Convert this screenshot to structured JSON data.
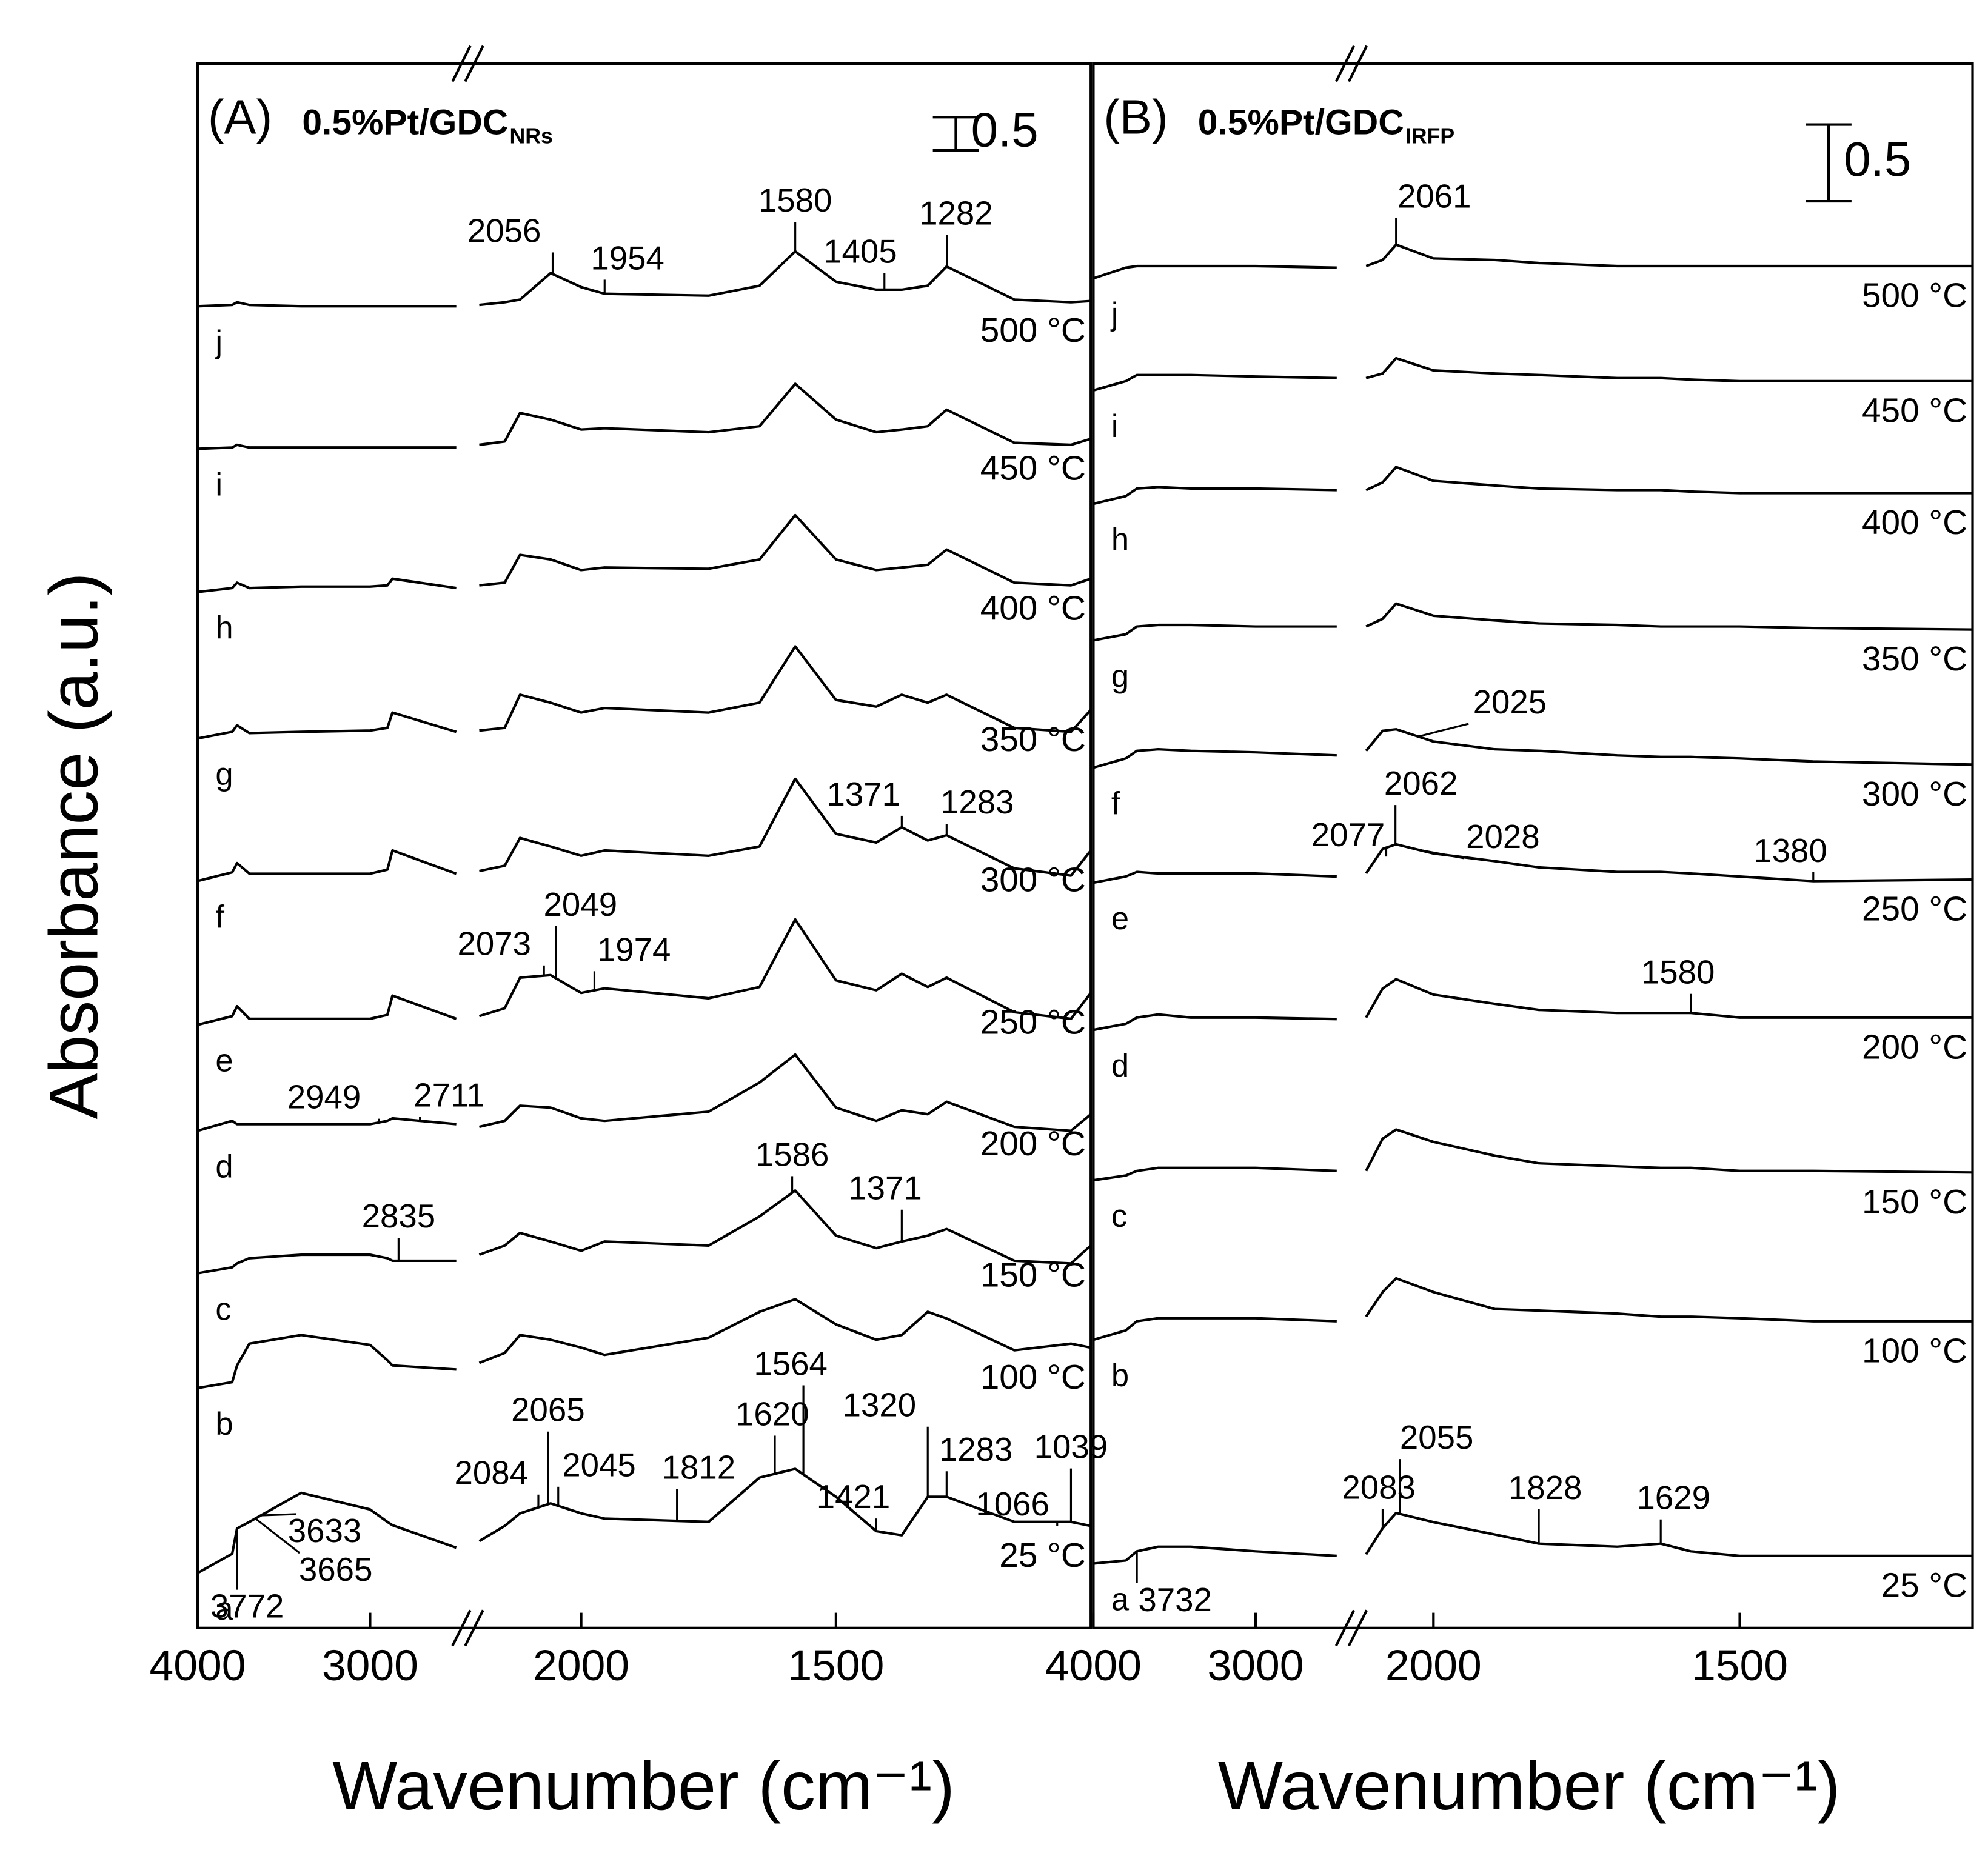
{
  "chart_data": [
    {
      "type": "line",
      "title": "(A)",
      "sample": "0.5%Pt/GDC",
      "sample_subscript": "NRs",
      "ylabel": "Absorbance (a.u.)",
      "xlabel": "Wavenumber (cm⁻¹)",
      "xlim": [
        4000,
        1000
      ],
      "xbreak": [
        2500,
        2200
      ],
      "xticks": [
        4000,
        3000,
        2000,
        1500
      ],
      "ylim": [
        0,
        23.6
      ],
      "scale_bar": 0.5,
      "color": "#000000",
      "x": [
        4000,
        3800,
        3772,
        3700,
        3400,
        3000,
        2900,
        2870,
        2500,
        2200,
        2150,
        2120,
        2060,
        2000,
        1954,
        1750,
        1650,
        1580,
        1500,
        1421,
        1371,
        1320,
        1283,
        1150,
        1039,
        1000
      ],
      "series": [
        {
          "name": "25 °C",
          "label": "a",
          "values": [
            0.83,
            1.12,
            1.5,
            1.6,
            2.04,
            1.79,
            1.6,
            1.55,
            1.21,
            1.31,
            1.54,
            1.73,
            1.88,
            1.73,
            1.65,
            1.6,
            2.27,
            2.4,
            1.98,
            1.46,
            1.4,
            1.98,
            1.98,
            1.6,
            1.6,
            1.54
          ],
          "peaks": [
            3772,
            3665,
            3633,
            2084,
            2065,
            2045,
            1812,
            1620,
            1564,
            1421,
            1320,
            1283,
            1066,
            1039
          ]
        },
        {
          "name": "100 °C",
          "label": "b",
          "values": [
            3.62,
            3.71,
            3.96,
            4.29,
            4.42,
            4.27,
            4.04,
            3.96,
            3.9,
            4.0,
            4.15,
            4.42,
            4.35,
            4.23,
            4.12,
            4.38,
            4.77,
            4.96,
            4.58,
            4.35,
            4.42,
            4.77,
            4.67,
            4.19,
            4.29,
            4.23
          ],
          "peaks": []
        },
        {
          "name": "150 °C",
          "label": "c",
          "values": [
            5.35,
            5.44,
            5.5,
            5.58,
            5.63,
            5.63,
            5.58,
            5.54,
            5.54,
            5.63,
            5.77,
            5.96,
            5.83,
            5.69,
            5.83,
            5.77,
            6.21,
            6.6,
            5.92,
            5.73,
            5.83,
            5.92,
            6.02,
            5.54,
            5.5,
            5.77
          ],
          "peaks": [
            2835,
            1586,
            1371
          ]
        },
        {
          "name": "200 °C",
          "label": "d",
          "values": [
            7.5,
            7.65,
            7.6,
            7.6,
            7.6,
            7.6,
            7.65,
            7.69,
            7.6,
            7.56,
            7.65,
            7.88,
            7.85,
            7.69,
            7.65,
            7.79,
            8.23,
            8.65,
            7.85,
            7.65,
            7.81,
            7.75,
            7.94,
            7.56,
            7.5,
            7.75
          ],
          "peaks": [
            2949,
            2711
          ]
        },
        {
          "name": "250 °C",
          "label": "e",
          "values": [
            9.1,
            9.23,
            9.38,
            9.19,
            9.19,
            9.19,
            9.25,
            9.54,
            9.19,
            9.23,
            9.35,
            9.81,
            9.85,
            9.58,
            9.65,
            9.5,
            9.67,
            10.69,
            9.77,
            9.62,
            9.87,
            9.67,
            9.81,
            9.29,
            9.19,
            9.58
          ],
          "peaks": [
            2073,
            2049,
            1974
          ]
        },
        {
          "name": "300 °C",
          "label": "f",
          "values": [
            11.27,
            11.4,
            11.54,
            11.38,
            11.38,
            11.38,
            11.44,
            11.73,
            11.38,
            11.42,
            11.5,
            11.92,
            11.79,
            11.65,
            11.73,
            11.65,
            11.79,
            12.81,
            11.98,
            11.85,
            12.08,
            11.88,
            11.96,
            11.46,
            11.35,
            11.73
          ],
          "peaks": [
            1371,
            1283
          ]
        },
        {
          "name": "350 °C",
          "label": "g",
          "values": [
            13.42,
            13.52,
            13.62,
            13.5,
            13.52,
            13.54,
            13.58,
            13.81,
            13.52,
            13.54,
            13.58,
            14.08,
            13.96,
            13.81,
            13.88,
            13.81,
            13.96,
            14.81,
            14.0,
            13.9,
            14.08,
            13.96,
            14.08,
            13.58,
            13.52,
            13.85
          ],
          "peaks": []
        },
        {
          "name": "400 °C",
          "label": "h",
          "values": [
            15.63,
            15.69,
            15.77,
            15.69,
            15.71,
            15.71,
            15.73,
            15.83,
            15.69,
            15.73,
            15.77,
            16.19,
            16.12,
            15.96,
            16.0,
            15.98,
            16.12,
            16.79,
            16.12,
            15.96,
            16.0,
            16.04,
            16.27,
            15.77,
            15.73,
            15.83
          ],
          "peaks": []
        },
        {
          "name": "450 °C",
          "label": "i",
          "values": [
            17.79,
            17.81,
            17.85,
            17.81,
            17.81,
            17.81,
            17.81,
            17.81,
            17.81,
            17.85,
            17.9,
            18.33,
            18.23,
            18.08,
            18.1,
            18.04,
            18.13,
            18.77,
            18.23,
            18.04,
            18.08,
            18.13,
            18.38,
            17.88,
            17.85,
            17.94
          ],
          "peaks": []
        },
        {
          "name": "500 °C",
          "label": "j",
          "values": [
            19.94,
            19.96,
            20.0,
            19.96,
            19.94,
            19.94,
            19.94,
            19.94,
            19.94,
            19.96,
            20.0,
            20.04,
            20.44,
            20.23,
            20.13,
            20.1,
            20.25,
            20.77,
            20.31,
            20.19,
            20.19,
            20.25,
            20.54,
            20.04,
            20.0,
            20.02
          ],
          "peaks": [
            2056,
            1954,
            1580,
            1405,
            1282
          ]
        }
      ]
    },
    {
      "type": "line",
      "title": "(B)",
      "sample": "0.5%Pt/GDC",
      "sample_subscript": "IRFP",
      "xlabel": "Wavenumber (cm⁻¹)",
      "xlim": [
        4000,
        1120
      ],
      "xbreak": [
        2500,
        2110
      ],
      "xticks": [
        4000,
        3000,
        2000,
        1500
      ],
      "ylim": [
        0,
        10.2
      ],
      "scale_bar": 0.5,
      "color": "#000000",
      "x": [
        4000,
        3800,
        3732,
        3600,
        3400,
        3000,
        2500,
        2110,
        2083,
        2061,
        2000,
        1900,
        1828,
        1700,
        1629,
        1580,
        1500,
        1380,
        1120
      ],
      "series": [
        {
          "name": "25 °C",
          "label": "a",
          "values": [
            0.42,
            0.44,
            0.5,
            0.53,
            0.53,
            0.5,
            0.47,
            0.48,
            0.65,
            0.75,
            0.69,
            0.61,
            0.55,
            0.53,
            0.55,
            0.5,
            0.47,
            0.47,
            0.47
          ],
          "peaks": [
            3732,
            2083,
            2055,
            1828,
            1629
          ]
        },
        {
          "name": "100 °C",
          "label": "b",
          "values": [
            1.88,
            1.94,
            2.0,
            2.02,
            2.02,
            2.02,
            2.0,
            2.03,
            2.19,
            2.28,
            2.19,
            2.08,
            2.07,
            2.05,
            2.03,
            2.03,
            2.02,
            2.0,
            2.0
          ],
          "peaks": []
        },
        {
          "name": "150 °C",
          "label": "c",
          "values": [
            2.92,
            2.95,
            2.98,
            3.0,
            3.0,
            3.0,
            2.98,
            2.98,
            3.19,
            3.25,
            3.17,
            3.08,
            3.03,
            3.01,
            3.0,
            3.0,
            2.98,
            2.98,
            2.97
          ],
          "peaks": []
        },
        {
          "name": "200 °C",
          "label": "d",
          "values": [
            3.9,
            3.94,
            3.98,
            4.0,
            3.98,
            3.98,
            3.97,
            3.98,
            4.17,
            4.23,
            4.13,
            4.07,
            4.03,
            4.01,
            4.01,
            4.01,
            3.98,
            3.98,
            3.98
          ],
          "peaks": [
            1580
          ]
        },
        {
          "name": "250 °C",
          "label": "e",
          "values": [
            4.86,
            4.9,
            4.93,
            4.92,
            4.92,
            4.92,
            4.9,
            4.92,
            5.08,
            5.11,
            5.05,
            5.0,
            4.96,
            4.93,
            4.93,
            4.92,
            4.9,
            4.87,
            4.88
          ],
          "peaks": [
            2077,
            2062,
            2028,
            1380
          ]
        },
        {
          "name": "300 °C",
          "label": "f",
          "values": [
            5.61,
            5.67,
            5.72,
            5.73,
            5.72,
            5.71,
            5.69,
            5.72,
            5.85,
            5.86,
            5.78,
            5.73,
            5.72,
            5.69,
            5.68,
            5.68,
            5.67,
            5.65,
            5.63
          ],
          "peaks": [
            2025
          ]
        },
        {
          "name": "350 °C",
          "label": "g",
          "values": [
            6.44,
            6.48,
            6.53,
            6.54,
            6.54,
            6.53,
            6.53,
            6.53,
            6.58,
            6.68,
            6.6,
            6.57,
            6.55,
            6.54,
            6.53,
            6.53,
            6.53,
            6.52,
            6.51
          ],
          "peaks": []
        },
        {
          "name": "400 °C",
          "label": "h",
          "values": [
            7.33,
            7.38,
            7.43,
            7.44,
            7.43,
            7.43,
            7.42,
            7.42,
            7.47,
            7.57,
            7.48,
            7.45,
            7.43,
            7.42,
            7.42,
            7.41,
            7.4,
            7.4,
            7.4
          ],
          "peaks": []
        },
        {
          "name": "450 °C",
          "label": "i",
          "values": [
            8.07,
            8.13,
            8.17,
            8.17,
            8.17,
            8.16,
            8.15,
            8.15,
            8.18,
            8.28,
            8.2,
            8.18,
            8.17,
            8.15,
            8.15,
            8.14,
            8.13,
            8.13,
            8.13
          ],
          "peaks": []
        },
        {
          "name": "500 °C",
          "label": "j",
          "values": [
            8.8,
            8.87,
            8.88,
            8.88,
            8.88,
            8.88,
            8.87,
            8.88,
            8.92,
            9.02,
            8.93,
            8.92,
            8.9,
            8.88,
            8.88,
            8.88,
            8.88,
            8.88,
            8.88
          ],
          "peaks": [
            2061
          ]
        }
      ]
    }
  ]
}
